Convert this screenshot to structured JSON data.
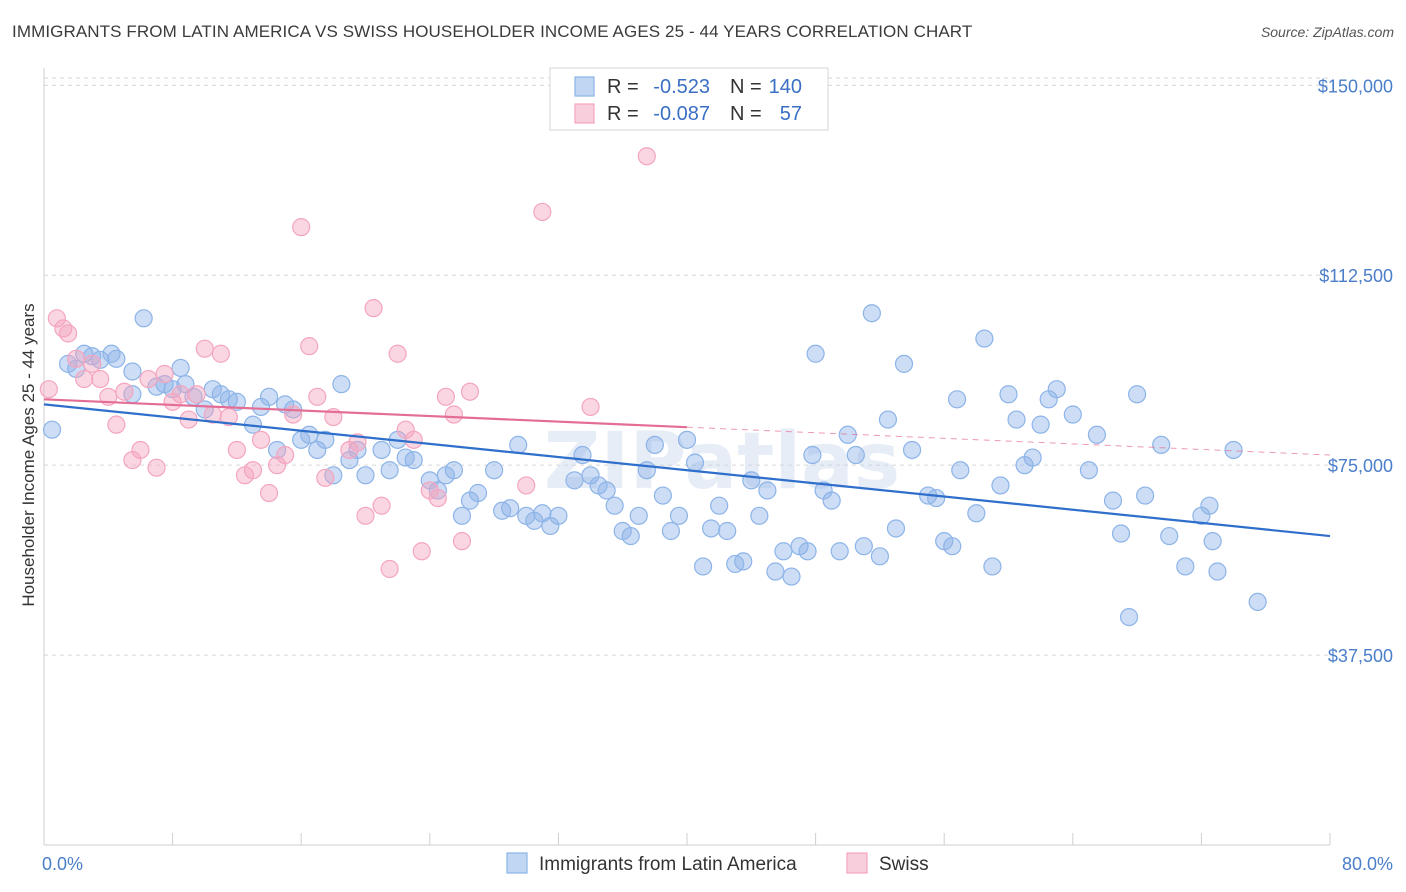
{
  "chart_data": {
    "type": "scatter",
    "title": "IMMIGRANTS FROM LATIN AMERICA VS SWISS HOUSEHOLDER INCOME AGES 25 - 44 YEARS CORRELATION CHART",
    "source": "Source: ZipAtlas.com",
    "xlabel": "",
    "ylabel": "Householder Income Ages 25 - 44 years",
    "xlim": [
      0,
      80
    ],
    "ylim": [
      0,
      155000
    ],
    "x_tick_labels": [
      "0.0%",
      "80.0%"
    ],
    "y_ticks": [
      37500,
      75000,
      112500,
      150000
    ],
    "y_tick_labels": [
      "$37,500",
      "$75,000",
      "$112,500",
      "$150,000"
    ],
    "grid": true,
    "legend_position": "top-center",
    "stats_legend": [
      {
        "r_label": "R =",
        "r_value": "-0.523",
        "n_label": "N =",
        "n_value": "140"
      },
      {
        "r_label": "R =",
        "r_value": "-0.087",
        "n_label": "N =",
        "n_value": "57"
      }
    ],
    "series": [
      {
        "name": "Immigrants from Latin America",
        "color": "#8db4e8",
        "line_color": "#2f6fcc",
        "trend": {
          "x": [
            0,
            80
          ],
          "y": [
            87000,
            61000
          ],
          "dashed_from": null
        },
        "points": [
          [
            0.5,
            82000
          ],
          [
            1.5,
            95000
          ],
          [
            2,
            94000
          ],
          [
            2.5,
            97000
          ],
          [
            3,
            96500
          ],
          [
            3.5,
            95800
          ],
          [
            4.2,
            97000
          ],
          [
            4.5,
            96000
          ],
          [
            5.5,
            93500
          ],
          [
            5.5,
            89000
          ],
          [
            6.2,
            104000
          ],
          [
            7,
            90500
          ],
          [
            7.5,
            91000
          ],
          [
            8,
            90000
          ],
          [
            8.5,
            94200
          ],
          [
            8.8,
            91000
          ],
          [
            9.3,
            88500
          ],
          [
            10,
            86000
          ],
          [
            10.5,
            90000
          ],
          [
            11,
            89000
          ],
          [
            11.5,
            88000
          ],
          [
            12,
            87500
          ],
          [
            13,
            83000
          ],
          [
            13.5,
            86500
          ],
          [
            14,
            88500
          ],
          [
            14.5,
            78000
          ],
          [
            15,
            87000
          ],
          [
            15.5,
            86000
          ],
          [
            16,
            80000
          ],
          [
            16.5,
            81000
          ],
          [
            17,
            78000
          ],
          [
            17.5,
            80000
          ],
          [
            18,
            73000
          ],
          [
            18.5,
            91000
          ],
          [
            19,
            76000
          ],
          [
            19.5,
            78000
          ],
          [
            20,
            73000
          ],
          [
            21,
            78000
          ],
          [
            21.5,
            74000
          ],
          [
            22,
            80000
          ],
          [
            22.5,
            76500
          ],
          [
            23,
            76000
          ],
          [
            24,
            72000
          ],
          [
            24.5,
            70000
          ],
          [
            25,
            73000
          ],
          [
            25.5,
            74000
          ],
          [
            26,
            65000
          ],
          [
            26.5,
            68000
          ],
          [
            27,
            69500
          ],
          [
            28,
            74000
          ],
          [
            28.5,
            66000
          ],
          [
            29,
            66500
          ],
          [
            29.5,
            79000
          ],
          [
            30,
            65000
          ],
          [
            30.5,
            64000
          ],
          [
            31,
            65500
          ],
          [
            31.5,
            63000
          ],
          [
            32,
            65000
          ],
          [
            33,
            72000
          ],
          [
            33.5,
            77000
          ],
          [
            34,
            73000
          ],
          [
            34.5,
            71000
          ],
          [
            35,
            70000
          ],
          [
            35.5,
            67000
          ],
          [
            36,
            62000
          ],
          [
            36.5,
            61000
          ],
          [
            37,
            65000
          ],
          [
            37.5,
            74000
          ],
          [
            38,
            79000
          ],
          [
            38.5,
            69000
          ],
          [
            39,
            62000
          ],
          [
            39.5,
            65000
          ],
          [
            40,
            80000
          ],
          [
            40.5,
            75500
          ],
          [
            41,
            55000
          ],
          [
            41.5,
            62500
          ],
          [
            42,
            67000
          ],
          [
            42.5,
            62000
          ],
          [
            43,
            55500
          ],
          [
            43.5,
            56000
          ],
          [
            44,
            72000
          ],
          [
            44.5,
            65000
          ],
          [
            45,
            70000
          ],
          [
            45.5,
            54000
          ],
          [
            46,
            58000
          ],
          [
            46.5,
            53000
          ],
          [
            47,
            59000
          ],
          [
            47.5,
            58000
          ],
          [
            47.8,
            77000
          ],
          [
            48,
            97000
          ],
          [
            48.5,
            70000
          ],
          [
            49,
            68000
          ],
          [
            49.5,
            58000
          ],
          [
            50,
            81000
          ],
          [
            50.5,
            77000
          ],
          [
            51,
            59000
          ],
          [
            51.5,
            105000
          ],
          [
            52,
            57000
          ],
          [
            52.5,
            84000
          ],
          [
            53,
            62500
          ],
          [
            53.5,
            95000
          ],
          [
            54,
            78000
          ],
          [
            55,
            69000
          ],
          [
            55.5,
            68500
          ],
          [
            56,
            60000
          ],
          [
            56.5,
            59000
          ],
          [
            56.8,
            88000
          ],
          [
            57,
            74000
          ],
          [
            58,
            65500
          ],
          [
            58.5,
            100000
          ],
          [
            59,
            55000
          ],
          [
            59.5,
            71000
          ],
          [
            60,
            89000
          ],
          [
            60.5,
            84000
          ],
          [
            61,
            75000
          ],
          [
            61.5,
            76500
          ],
          [
            62,
            83000
          ],
          [
            62.5,
            88000
          ],
          [
            63,
            90000
          ],
          [
            64,
            85000
          ],
          [
            65,
            74000
          ],
          [
            65.5,
            81000
          ],
          [
            66.5,
            68000
          ],
          [
            67,
            61500
          ],
          [
            67.5,
            45000
          ],
          [
            68,
            89000
          ],
          [
            68.5,
            69000
          ],
          [
            69.5,
            79000
          ],
          [
            70,
            61000
          ],
          [
            71,
            55000
          ],
          [
            72,
            65000
          ],
          [
            72.5,
            67000
          ],
          [
            72.7,
            60000
          ],
          [
            73,
            54000
          ],
          [
            74,
            78000
          ],
          [
            75.5,
            48000
          ]
        ]
      },
      {
        "name": "Swiss",
        "color": "#f4a5bf",
        "line_color": "#e46d96",
        "trend": {
          "x": [
            0,
            80
          ],
          "y": [
            88000,
            77000
          ],
          "dashed_from": 40
        },
        "points": [
          [
            0.3,
            90000
          ],
          [
            0.8,
            104000
          ],
          [
            1.2,
            102000
          ],
          [
            1.5,
            101000
          ],
          [
            2,
            96000
          ],
          [
            2.5,
            92000
          ],
          [
            3,
            95000
          ],
          [
            3.5,
            92000
          ],
          [
            4,
            88500
          ],
          [
            4.5,
            83000
          ],
          [
            5,
            89500
          ],
          [
            5.5,
            76000
          ],
          [
            6,
            78000
          ],
          [
            6.5,
            92000
          ],
          [
            7,
            74500
          ],
          [
            7.5,
            93000
          ],
          [
            8,
            87500
          ],
          [
            8.5,
            89000
          ],
          [
            9,
            84000
          ],
          [
            9.5,
            89000
          ],
          [
            10,
            98000
          ],
          [
            10.5,
            85000
          ],
          [
            11,
            97000
          ],
          [
            11.5,
            84500
          ],
          [
            12,
            78000
          ],
          [
            12.5,
            73000
          ],
          [
            13,
            74000
          ],
          [
            13.5,
            80000
          ],
          [
            14,
            69500
          ],
          [
            14.5,
            75000
          ],
          [
            15,
            77000
          ],
          [
            15.5,
            85000
          ],
          [
            16,
            122000
          ],
          [
            16.5,
            98500
          ],
          [
            17,
            88500
          ],
          [
            17.5,
            72500
          ],
          [
            18,
            84500
          ],
          [
            19,
            78000
          ],
          [
            19.5,
            79500
          ],
          [
            20,
            65000
          ],
          [
            20.5,
            106000
          ],
          [
            21,
            67000
          ],
          [
            21.5,
            54500
          ],
          [
            22,
            97000
          ],
          [
            22.5,
            82000
          ],
          [
            23,
            80000
          ],
          [
            23.5,
            58000
          ],
          [
            24,
            70000
          ],
          [
            24.5,
            68500
          ],
          [
            25,
            88500
          ],
          [
            25.5,
            85000
          ],
          [
            26,
            60000
          ],
          [
            26.5,
            89500
          ],
          [
            30,
            71000
          ],
          [
            31,
            125000
          ],
          [
            34,
            86500
          ],
          [
            37.5,
            136000
          ]
        ]
      }
    ],
    "bottom_legend": [
      "Immigrants from Latin America",
      "Swiss"
    ],
    "watermark": "ZIPatlas"
  }
}
